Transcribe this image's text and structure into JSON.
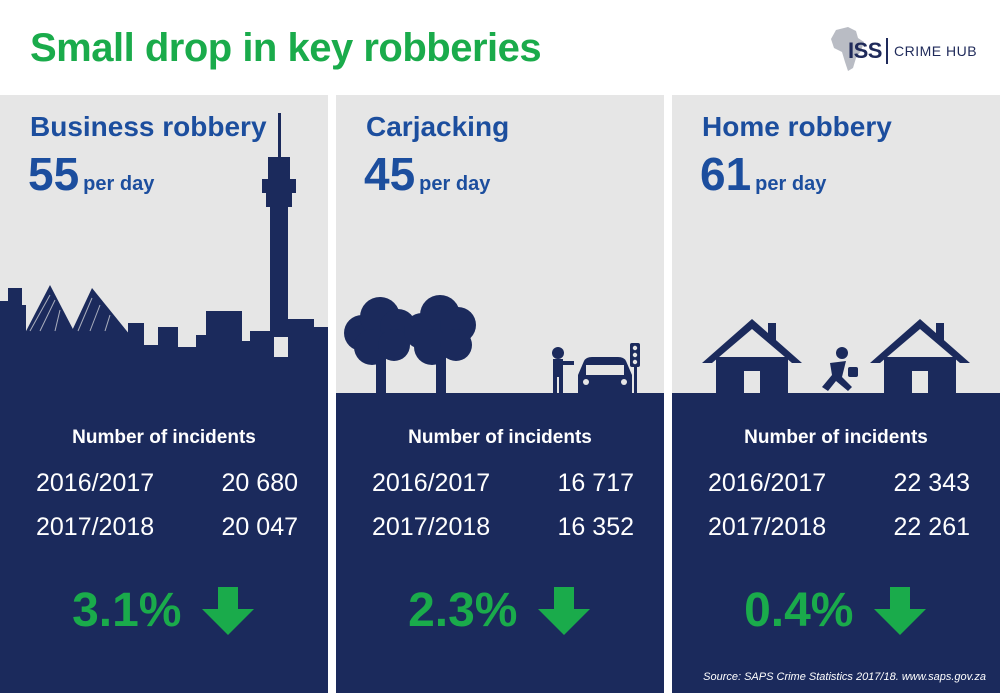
{
  "header": {
    "title": "Small drop in key robberies",
    "logo": {
      "abbr": "ISS",
      "name": "CRIME HUB"
    }
  },
  "colors": {
    "navy": "#1b2a5c",
    "green": "#1aab4b",
    "blue": "#1c4e9e",
    "light_gray": "#e6e6e6"
  },
  "panels": [
    {
      "title": "Business robbery",
      "rate_number": "55",
      "rate_unit": "per day",
      "incidents_label": "Number of incidents",
      "rows": [
        {
          "year": "2016/2017",
          "value": "20 680"
        },
        {
          "year": "2017/2018",
          "value": "20 047"
        }
      ],
      "change": "3.1%",
      "arrow_icon": "down-arrow-icon",
      "illustration": "city-skyline-illustration"
    },
    {
      "title": "Carjacking",
      "rate_number": "45",
      "rate_unit": "per day",
      "incidents_label": "Number of incidents",
      "rows": [
        {
          "year": "2016/2017",
          "value": "16 717"
        },
        {
          "year": "2017/2018",
          "value": "16 352"
        }
      ],
      "change": "2.3%",
      "arrow_icon": "down-arrow-icon",
      "illustration": "carjacking-street-illustration"
    },
    {
      "title": "Home robbery",
      "rate_number": "61",
      "rate_unit": "per day",
      "incidents_label": "Number of incidents",
      "rows": [
        {
          "year": "2016/2017",
          "value": "22 343"
        },
        {
          "year": "2017/2018",
          "value": "22 261"
        }
      ],
      "change": "0.4%",
      "arrow_icon": "down-arrow-icon",
      "illustration": "houses-burglar-illustration"
    }
  ],
  "source": "Source: SAPS Crime Statistics 2017/18. www.saps.gov.za"
}
